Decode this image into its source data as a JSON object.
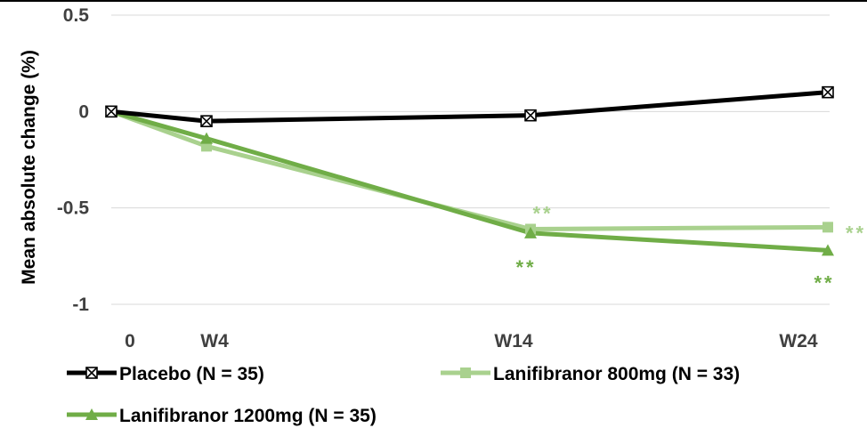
{
  "chart_data": {
    "type": "line",
    "title": "",
    "xlabel": "",
    "ylabel": "Mean absolute change (%)",
    "ylim": [
      -1,
      0.5
    ],
    "yticks": [
      {
        "value": 0.5,
        "label": "0.5"
      },
      {
        "value": 0,
        "label": "0"
      },
      {
        "value": -0.5,
        "label": "-0.5"
      },
      {
        "value": -1,
        "label": "-1"
      }
    ],
    "x": [
      0,
      4,
      14,
      24
    ],
    "xtick_labels": [
      "0",
      "W4",
      "W14",
      "W24"
    ],
    "grid": true,
    "legend_position": "bottom",
    "series": [
      {
        "name": "Placebo (N = 35)",
        "color": "#000000",
        "marker": "x-square",
        "values": [
          0,
          -0.05,
          -0.02,
          0.1
        ],
        "annotations": []
      },
      {
        "name": "Lanifibranor 800mg (N = 33)",
        "color": "#a9d18e",
        "marker": "square",
        "values": [
          0,
          -0.18,
          -0.61,
          -0.6
        ],
        "annotations": [
          {
            "x": 14,
            "text": "**",
            "position": "above"
          },
          {
            "x": 24,
            "text": "**",
            "position": "right"
          }
        ]
      },
      {
        "name": "Lanifibranor 1200mg (N = 35)",
        "color": "#70ad47",
        "marker": "triangle",
        "values": [
          0,
          -0.14,
          -0.63,
          -0.72
        ],
        "annotations": [
          {
            "x": 14,
            "text": "**",
            "position": "below"
          },
          {
            "x": 24,
            "text": "**",
            "position": "below"
          }
        ]
      }
    ]
  }
}
